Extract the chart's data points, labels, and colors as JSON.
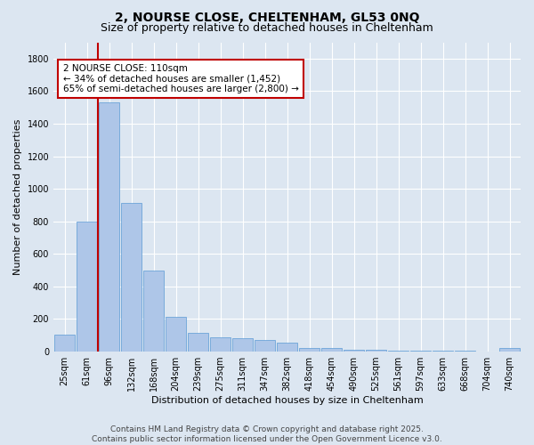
{
  "title_line1": "2, NOURSE CLOSE, CHELTENHAM, GL53 0NQ",
  "title_line2": "Size of property relative to detached houses in Cheltenham",
  "xlabel": "Distribution of detached houses by size in Cheltenham",
  "ylabel": "Number of detached properties",
  "categories": [
    "25sqm",
    "61sqm",
    "96sqm",
    "132sqm",
    "168sqm",
    "204sqm",
    "239sqm",
    "275sqm",
    "311sqm",
    "347sqm",
    "382sqm",
    "418sqm",
    "454sqm",
    "490sqm",
    "525sqm",
    "561sqm",
    "597sqm",
    "633sqm",
    "668sqm",
    "704sqm",
    "740sqm"
  ],
  "values": [
    105,
    800,
    1530,
    915,
    500,
    215,
    115,
    90,
    80,
    70,
    55,
    20,
    20,
    10,
    10,
    8,
    5,
    5,
    5,
    3,
    20
  ],
  "bar_color": "#aec6e8",
  "bar_edge_color": "#5b9bd5",
  "vline_x": 1.5,
  "vline_color": "#c00000",
  "annotation_text": "2 NOURSE CLOSE: 110sqm\n← 34% of detached houses are smaller (1,452)\n65% of semi-detached houses are larger (2,800) →",
  "annotation_box_color": "#c00000",
  "ylim": [
    0,
    1900
  ],
  "yticks": [
    0,
    200,
    400,
    600,
    800,
    1000,
    1200,
    1400,
    1600,
    1800
  ],
  "background_color": "#dce6f1",
  "plot_bg_color": "#dce6f1",
  "footer_line1": "Contains HM Land Registry data © Crown copyright and database right 2025.",
  "footer_line2": "Contains public sector information licensed under the Open Government Licence v3.0.",
  "title_fontsize": 10,
  "subtitle_fontsize": 9,
  "axis_label_fontsize": 8,
  "tick_fontsize": 7,
  "annotation_fontsize": 7.5,
  "footer_fontsize": 6.5,
  "grid_color": "#ffffff"
}
